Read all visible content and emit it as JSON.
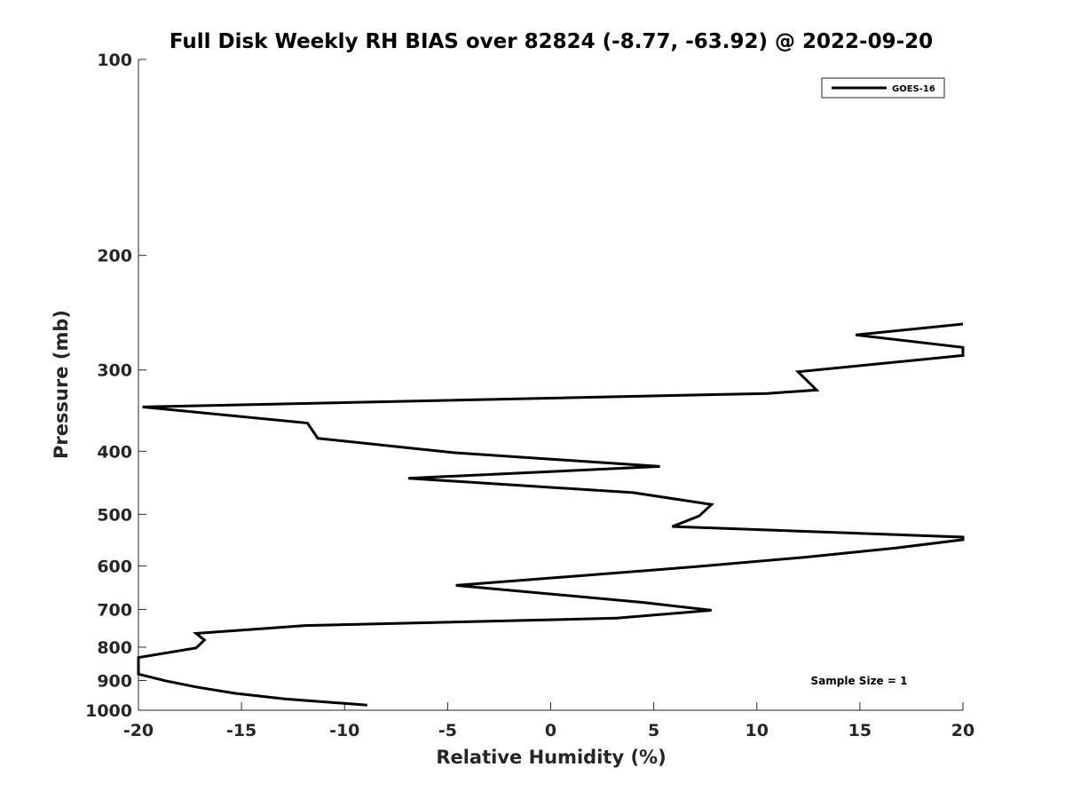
{
  "chart_data": {
    "type": "line",
    "title": "Full Disk Weekly RH BIAS over 82824 (-8.77, -63.92) @ 2022-09-20",
    "xlabel": "Relative Humidity (%)",
    "ylabel": "Pressure (mb)",
    "xlim": [
      -20,
      20
    ],
    "ylim": [
      100,
      1000
    ],
    "y_scale": "log",
    "y_reversed": true,
    "x_ticks": [
      -20,
      -15,
      -10,
      -5,
      0,
      5,
      10,
      15,
      20
    ],
    "x_tick_labels": [
      "-20",
      "-15",
      "-10",
      "-5",
      "0",
      "5",
      "10",
      "15",
      "20"
    ],
    "y_ticks": [
      100,
      200,
      300,
      400,
      500,
      600,
      700,
      800,
      900,
      1000
    ],
    "y_tick_labels": [
      "100",
      "200",
      "300",
      "400",
      "500",
      "600",
      "700",
      "800",
      "900",
      "1000"
    ],
    "grid": false,
    "legend_position": "top-right",
    "series": [
      {
        "name": "GOES-16",
        "color": "#000000",
        "points": [
          [
            20.0,
            255
          ],
          [
            14.8,
            265
          ],
          [
            20.0,
            277
          ],
          [
            20.0,
            285
          ],
          [
            12.0,
            302
          ],
          [
            12.9,
            322
          ],
          [
            10.5,
            326
          ],
          [
            -19.8,
            342
          ],
          [
            -11.8,
            362
          ],
          [
            -11.3,
            382
          ],
          [
            -4.7,
            402
          ],
          [
            5.3,
            422
          ],
          [
            -6.9,
            440
          ],
          [
            4.0,
            463
          ],
          [
            7.8,
            483
          ],
          [
            7.2,
            503
          ],
          [
            5.9,
            522
          ],
          [
            20.0,
            542
          ],
          [
            20.0,
            547
          ],
          [
            16.8,
            563
          ],
          [
            12.3,
            582
          ],
          [
            7.0,
            602
          ],
          [
            -4.6,
            643
          ],
          [
            4.5,
            683
          ],
          [
            7.8,
            702
          ],
          [
            3.2,
            722
          ],
          [
            -11.9,
            741
          ],
          [
            -17.2,
            762
          ],
          [
            -16.8,
            780
          ],
          [
            -17.2,
            802
          ],
          [
            -20.0,
            830
          ],
          [
            -20.0,
            880
          ],
          [
            -18.7,
            901
          ],
          [
            -17.2,
            921
          ],
          [
            -15.3,
            942
          ],
          [
            -12.9,
            961
          ],
          [
            -8.9,
            982
          ]
        ]
      }
    ],
    "annotations": [
      "Sample Size = 1"
    ]
  }
}
